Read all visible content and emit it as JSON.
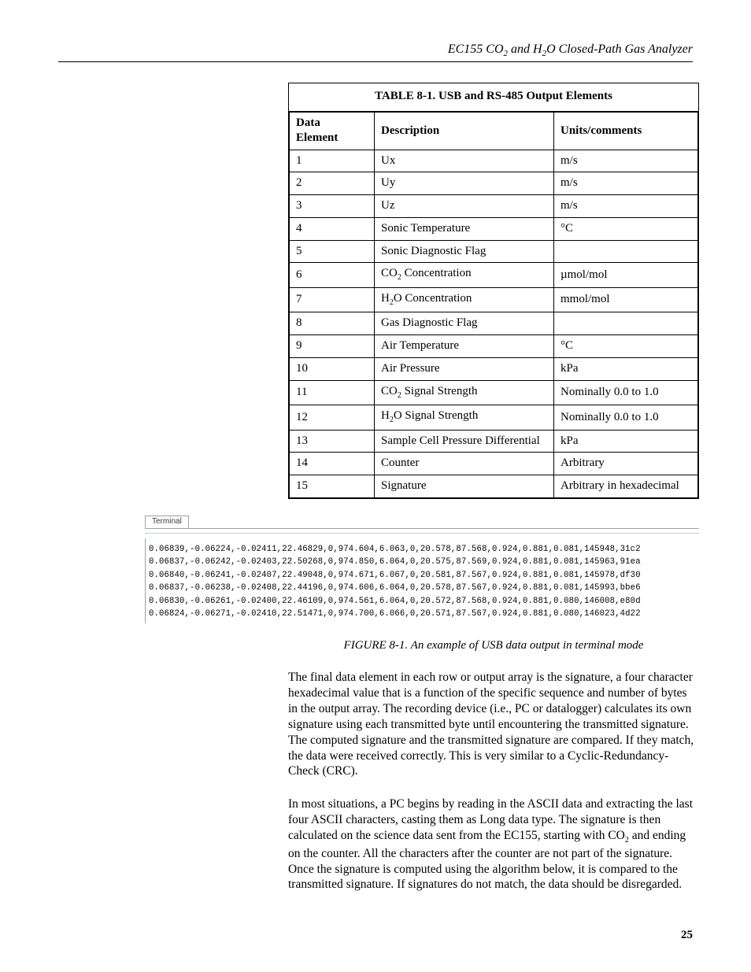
{
  "header": {
    "title_html": "EC155 CO<sub>2</sub> and H<sub>2</sub>O Closed-Path Gas Analyzer"
  },
  "table": {
    "title": "TABLE 8-1.  USB and RS-485 Output Elements",
    "columns": [
      "Data Element",
      "Description",
      "Units/comments"
    ],
    "rows": [
      {
        "n": "1",
        "desc_html": "Ux",
        "units_html": "m/s"
      },
      {
        "n": "2",
        "desc_html": "Uy",
        "units_html": "m/s"
      },
      {
        "n": "3",
        "desc_html": "Uz",
        "units_html": "m/s"
      },
      {
        "n": "4",
        "desc_html": "Sonic Temperature",
        "units_html": "°C"
      },
      {
        "n": "5",
        "desc_html": "Sonic Diagnostic Flag",
        "units_html": ""
      },
      {
        "n": "6",
        "desc_html": "CO<sub>2</sub> Concentration",
        "units_html": "µmol/mol"
      },
      {
        "n": "7",
        "desc_html": "H<sub>2</sub>O Concentration",
        "units_html": "mmol/mol"
      },
      {
        "n": "8",
        "desc_html": "Gas Diagnostic Flag",
        "units_html": ""
      },
      {
        "n": "9",
        "desc_html": "Air Temperature",
        "units_html": "°C"
      },
      {
        "n": "10",
        "desc_html": "Air Pressure",
        "units_html": "kPa"
      },
      {
        "n": "11",
        "desc_html": "CO<sub>2</sub> Signal Strength",
        "units_html": "Nominally 0.0 to 1.0"
      },
      {
        "n": "12",
        "desc_html": "H<sub>2</sub>O Signal Strength",
        "units_html": "Nominally 0.0 to 1.0"
      },
      {
        "n": "13",
        "desc_html": "Sample Cell Pressure Differential",
        "units_html": "kPa"
      },
      {
        "n": "14",
        "desc_html": "Counter",
        "units_html": "Arbitrary"
      },
      {
        "n": "15",
        "desc_html": "Signature",
        "units_html": "Arbitrary in hexadecimal"
      }
    ]
  },
  "terminal": {
    "tab_label": "Terminal",
    "lines": [
      "0.06839,-0.06224,-0.02411,22.46829,0,974.604,6.063,0,20.578,87.568,0.924,0.881,0.081,145948,31c2",
      "0.06837,-0.06242,-0.02403,22.50268,0,974.850,6.064,0,20.575,87.569,0.924,0.881,0.081,145963,91ea",
      "0.06840,-0.06241,-0.02407,22.49048,0,974.671,6.067,0,20.581,87.567,0.924,0.881,0.081,145978,df30",
      "0.06837,-0.06238,-0.02408,22.44196,0,974.606,6.064,0,20.578,87.567,0.924,0.881,0.081,145993,bbe6",
      "0.06830,-0.06261,-0.02400,22.46109,0,974.561,6.064,0,20.572,87.568,0.924,0.881,0.080,146008,e80d",
      "0.06824,-0.06271,-0.02410,22.51471,0,974.700,6.066,0,20.571,87.567,0.924,0.881,0.080,146023,4d22"
    ]
  },
  "figure": {
    "caption": "FIGURE 8-1.  An example of USB data output in terminal mode"
  },
  "paragraphs": {
    "p1": "The final data element in each row or output array is the signature, a four character hexadecimal value that is a function of the specific sequence and number of bytes in the output array.  The recording device (i.e., PC or datalogger) calculates its own signature using each transmitted byte until encountering the transmitted signature.  The computed signature and the transmitted signature are compared.  If they match, the data were received correctly.  This is very similar to a Cyclic-Redundancy-Check (CRC).",
    "p2_html": "In most situations, a PC begins by reading in the ASCII data and extracting the last four ASCII characters, casting them as Long data type.  The signature is then calculated on the science data sent from the EC155, starting with CO<sub>2</sub> and ending on the counter.  All the characters after the counter are not part of the signature.  Once the signature is computed using the algorithm below, it is compared to the transmitted signature.  If signatures do not match, the data should be disregarded."
  },
  "page_number": "25"
}
